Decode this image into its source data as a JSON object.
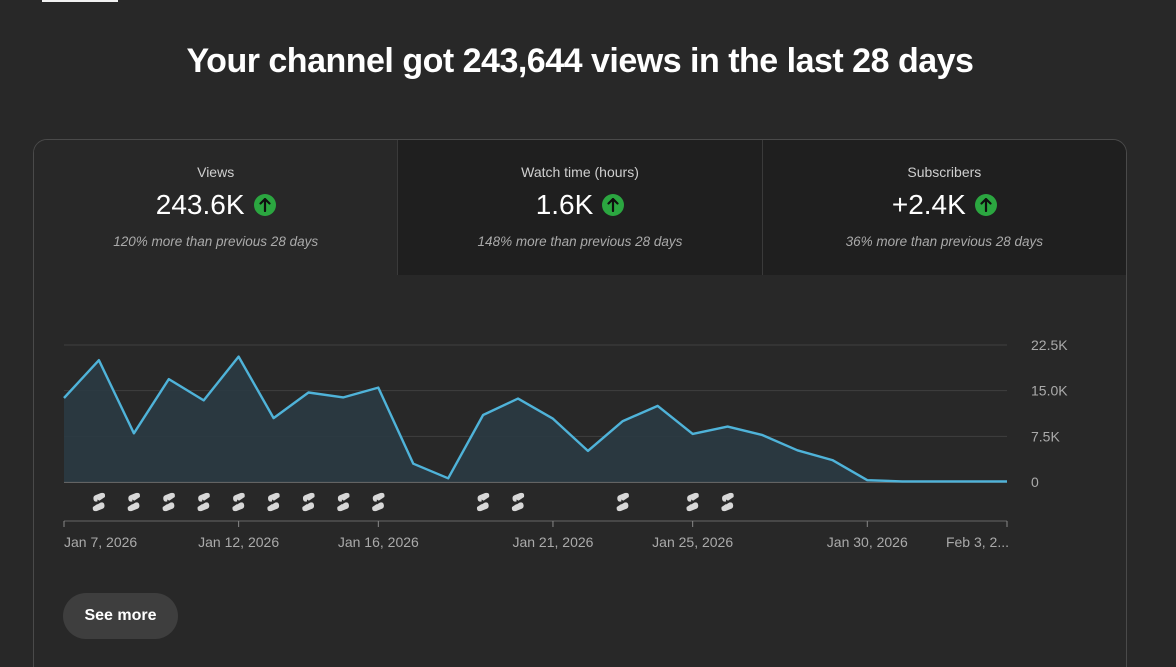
{
  "headline": "Your channel got 243,644 views in the last 28 days",
  "metrics": [
    {
      "label": "Views",
      "value": "243.6K",
      "comparison": "120% more than previous 28 days",
      "trend_icon": "arrow-up-icon"
    },
    {
      "label": "Watch time (hours)",
      "value": "1.6K",
      "comparison": "148% more than previous 28 days",
      "trend_icon": "arrow-up-icon"
    },
    {
      "label": "Subscribers",
      "value": "+2.4K",
      "comparison": "36% more than previous 28 days",
      "trend_icon": "arrow-up-icon"
    }
  ],
  "colors": {
    "line": "#4fb3d9",
    "area": "#2a3a42",
    "trend_badge": "#2ba640",
    "grid": "#3f3f3f",
    "background": "#282828"
  },
  "chart_data": {
    "type": "area",
    "y_ticks": [
      {
        "value": 22500,
        "label": "22.5K"
      },
      {
        "value": 15000,
        "label": "15.0K"
      },
      {
        "value": 7500,
        "label": "7.5K"
      },
      {
        "value": 0,
        "label": "0"
      }
    ],
    "ylim": [
      0,
      22500
    ],
    "grid": true,
    "x_labels": [
      {
        "index": 0,
        "label": "Jan 7, 2026"
      },
      {
        "index": 5,
        "label": "Jan 12, 2026"
      },
      {
        "index": 9,
        "label": "Jan 16, 2026"
      },
      {
        "index": 14,
        "label": "Jan 21, 2026"
      },
      {
        "index": 18,
        "label": "Jan 25, 2026"
      },
      {
        "index": 23,
        "label": "Jan 30, 2026"
      },
      {
        "index": 27,
        "label": "Feb 3, 2..."
      }
    ],
    "series": [
      {
        "dates": [
          "Jan 7",
          "Jan 8",
          "Jan 9",
          "Jan 10",
          "Jan 11",
          "Jan 12",
          "Jan 13",
          "Jan 14",
          "Jan 15",
          "Jan 16",
          "Jan 17",
          "Jan 18",
          "Jan 19",
          "Jan 20",
          "Jan 21",
          "Jan 22",
          "Jan 23",
          "Jan 24",
          "Jan 25",
          "Jan 26",
          "Jan 27",
          "Jan 28",
          "Jan 29",
          "Jan 30",
          "Jan 31",
          "Feb 1",
          "Feb 2",
          "Feb 3"
        ],
        "values": [
          13800,
          20000,
          8000,
          16900,
          13400,
          20600,
          10500,
          14700,
          13900,
          15500,
          3000,
          600,
          11000,
          13700,
          10400,
          5100,
          10000,
          12500,
          7900,
          9100,
          7700,
          5200,
          3600,
          300,
          100,
          100,
          100,
          100
        ]
      }
    ],
    "shorts_markers": [
      1,
      2,
      3,
      4,
      5,
      6,
      7,
      8,
      9,
      12,
      13,
      16,
      18,
      19
    ],
    "shorts_marker_icon": "shorts-icon"
  },
  "see_more_label": "See more"
}
